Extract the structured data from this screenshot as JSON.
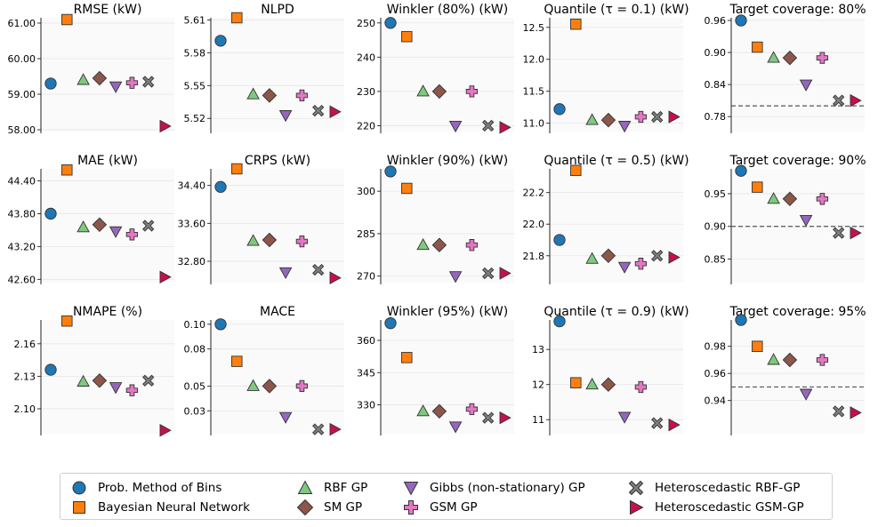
{
  "methods": [
    {
      "name": "Prob. Method of Bins",
      "color": "#1f77b4",
      "marker": "circle"
    },
    {
      "name": "Bayesian Neural Network",
      "color": "#ff7f0e",
      "marker": "square"
    },
    {
      "name": "RBF GP",
      "color": "#7fc97f",
      "marker": "triangle-up"
    },
    {
      "name": "SM GP",
      "color": "#8c564b",
      "marker": "diamond"
    },
    {
      "name": "Gibbs (non-stationary) GP",
      "color": "#9467bd",
      "marker": "triangle-down"
    },
    {
      "name": "GSM GP",
      "color": "#e377c2",
      "marker": "plus"
    },
    {
      "name": "Heteroscedastic RBF-GP",
      "color": "#7f7f7f",
      "marker": "x"
    },
    {
      "name": "Heteroscedastic GSM-GP",
      "color": "#c7104a",
      "marker": "triangle-right"
    }
  ],
  "chart_data": [
    {
      "type": "scatter",
      "title": "RMSE (kW)",
      "ylim": [
        57.95,
        61.15
      ],
      "yticks": [
        "58.00",
        "59.00",
        "60.00",
        "61.00"
      ],
      "values": [
        59.3,
        61.1,
        59.4,
        59.45,
        59.22,
        59.32,
        59.35,
        58.1
      ]
    },
    {
      "type": "scatter",
      "title": "NLPD",
      "ylim": [
        5.508,
        5.612
      ],
      "yticks": [
        "5.52",
        "5.55",
        "5.58",
        "5.61"
      ],
      "values": [
        5.591,
        5.612,
        5.542,
        5.541,
        5.523,
        5.541,
        5.527,
        5.526
      ]
    },
    {
      "type": "scatter",
      "title": "Winkler (80%) (kW)",
      "ylim": [
        218.3,
        251.5
      ],
      "yticks": [
        "220",
        "230",
        "240",
        "250"
      ],
      "values": [
        250,
        246,
        230,
        230,
        220,
        230,
        220,
        219.5
      ]
    },
    {
      "type": "scatter",
      "title": "Quantile (τ = 0.1) (kW)",
      "ylim": [
        10.87,
        12.65
      ],
      "yticks": [
        "11.0",
        "11.5",
        "12.0",
        "12.5"
      ],
      "values": [
        11.22,
        12.55,
        11.05,
        11.05,
        10.96,
        11.1,
        11.1,
        11.1
      ]
    },
    {
      "type": "scatter",
      "title": "Target coverage: 80%",
      "ylim": [
        0.752,
        0.965
      ],
      "yticks": [
        "0.78",
        "0.84",
        "0.90",
        "0.96"
      ],
      "values": [
        0.96,
        0.91,
        0.89,
        0.89,
        0.84,
        0.89,
        0.81,
        0.81
      ],
      "reference_line": 0.8
    },
    {
      "type": "scatter",
      "title": "MAE (kW)",
      "ylim": [
        42.54,
        44.62
      ],
      "yticks": [
        "42.60",
        "43.20",
        "43.80",
        "44.40"
      ],
      "values": [
        43.8,
        44.6,
        43.55,
        43.6,
        43.48,
        43.42,
        43.58,
        42.64
      ]
    },
    {
      "type": "scatter",
      "title": "CRPS (kW)",
      "ylim": [
        32.35,
        34.75
      ],
      "yticks": [
        "32.80",
        "33.60",
        "34.40"
      ],
      "values": [
        34.37,
        34.75,
        33.23,
        33.25,
        32.57,
        33.22,
        32.62,
        32.45
      ]
    },
    {
      "type": "scatter",
      "title": "Winkler (90%) (kW)",
      "ylim": [
        267.7,
        307.9
      ],
      "yticks": [
        "270",
        "285",
        "300"
      ],
      "values": [
        307,
        301,
        281,
        281,
        270,
        281,
        271,
        271
      ]
    },
    {
      "type": "scatter",
      "title": "Quantile (τ = 0.5) (kW)",
      "ylim": [
        21.63,
        22.35
      ],
      "yticks": [
        "21.8",
        "22.0",
        "22.2"
      ],
      "values": [
        21.9,
        22.34,
        21.78,
        21.8,
        21.73,
        21.75,
        21.8,
        21.79
      ]
    },
    {
      "type": "scatter",
      "title": "Target coverage: 90%",
      "ylim": [
        0.814,
        0.988
      ],
      "yticks": [
        "0.85",
        "0.90",
        "0.95"
      ],
      "values": [
        0.985,
        0.96,
        0.942,
        0.942,
        0.91,
        0.942,
        0.89,
        0.89
      ],
      "reference_line": 0.9
    },
    {
      "type": "scatter",
      "title": "NMAPE (%)",
      "ylim": [
        2.077,
        2.182
      ],
      "yticks": [
        "2.10",
        "2.13",
        "2.16"
      ],
      "values": [
        2.136,
        2.181,
        2.125,
        2.126,
        2.12,
        2.117,
        2.126,
        2.08
      ]
    },
    {
      "type": "scatter",
      "title": "MACE",
      "ylim": [
        0.0115,
        0.1035
      ],
      "yticks": [
        "0.03",
        "0.05",
        "0.08",
        "0.10"
      ],
      "values": [
        0.1,
        0.07,
        0.05,
        0.05,
        0.025,
        0.05,
        0.015,
        0.015
      ]
    },
    {
      "type": "scatter",
      "title": "Winkler (95%) (kW)",
      "ylim": [
        316.6,
        369.5
      ],
      "yticks": [
        "330",
        "345",
        "360"
      ],
      "values": [
        368,
        352,
        327,
        327,
        320,
        328,
        324,
        324
      ]
    },
    {
      "type": "scatter",
      "title": "Quantile (τ = 0.9) (kW)",
      "ylim": [
        10.6,
        13.84
      ],
      "yticks": [
        "11",
        "12",
        "13"
      ],
      "values": [
        13.8,
        12.05,
        12,
        12,
        11.08,
        11.93,
        10.9,
        10.85
      ]
    },
    {
      "type": "scatter",
      "title": "Target coverage: 95%",
      "ylim": [
        0.9155,
        0.9995
      ],
      "yticks": [
        "0.94",
        "0.96",
        "0.98"
      ],
      "values": [
        0.9995,
        0.98,
        0.97,
        0.97,
        0.945,
        0.97,
        0.932,
        0.931
      ],
      "reference_line": 0.95
    }
  ]
}
